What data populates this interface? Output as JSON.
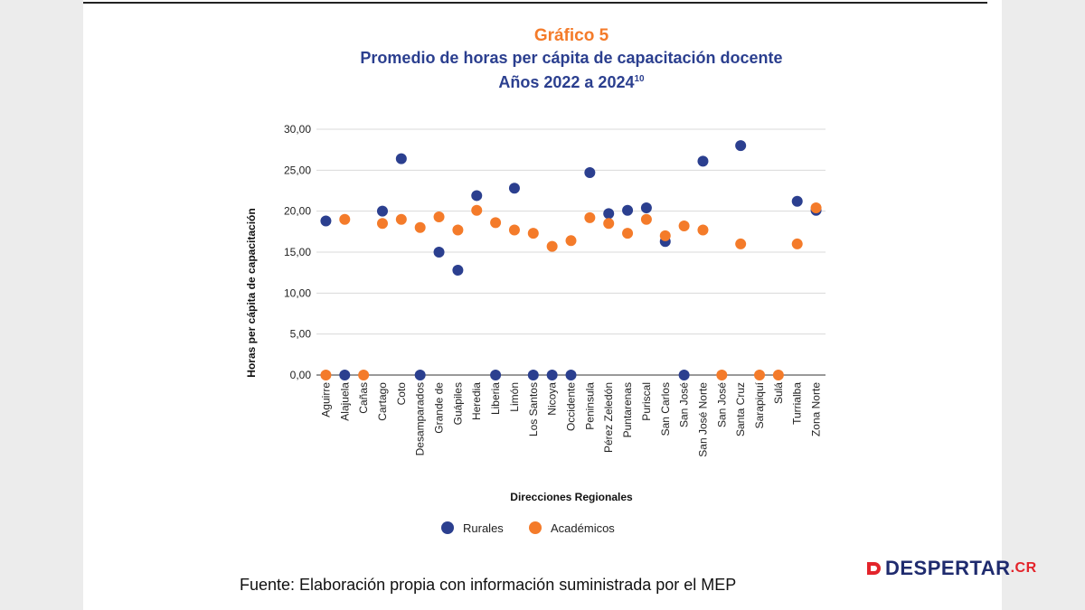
{
  "header": {
    "title": "Gráfico 5",
    "subtitle_line1": "Promedio de horas per cápita de capacitación docente",
    "subtitle_line2": "Años 2022 a 2024",
    "footnote_mark": "10"
  },
  "chart_data": {
    "type": "scatter",
    "title": "Gráfico 5",
    "xlabel": "Direcciones Regionales",
    "ylabel": "Horas per cápita de capacitación",
    "ylim": [
      0,
      30
    ],
    "yticks": [
      "0,00",
      "5,00",
      "10,00",
      "15,00",
      "20,00",
      "25,00",
      "30,00"
    ],
    "grid": true,
    "legend_position": "bottom",
    "categories": [
      "Aguirre",
      "Alajuela",
      "Cañas",
      "Cartago",
      "Coto",
      "Desamparados",
      "Grande de",
      "Guápiles",
      "Heredia",
      "Liberia",
      "Limón",
      "Los Santos",
      "Nicoya",
      "Occidente",
      "Peninsula",
      "Pérez Zeledón",
      "Puntarenas",
      "Puriscal",
      "San Carlos",
      "San José",
      "San José Norte",
      "San José",
      "Santa Cruz",
      "Sarapiquí",
      "Sulá",
      "Turrialba",
      "Zona Norte"
    ],
    "series": [
      {
        "name": "Rurales",
        "color": "#2b3f8f",
        "values": [
          18.8,
          0,
          null,
          20.0,
          26.4,
          0,
          15.0,
          12.8,
          21.9,
          0,
          22.8,
          0,
          0,
          0,
          24.7,
          19.7,
          20.1,
          20.4,
          16.3,
          0,
          26.1,
          null,
          28.0,
          null,
          null,
          21.2,
          20.1
        ]
      },
      {
        "name": "Académicos",
        "color": "#f47b2a",
        "values": [
          0,
          19.0,
          0,
          18.5,
          19.0,
          18.0,
          19.3,
          17.7,
          20.1,
          18.6,
          17.7,
          17.3,
          15.7,
          16.4,
          19.2,
          18.5,
          17.3,
          19.0,
          17.0,
          18.2,
          17.7,
          0,
          16.0,
          0,
          0,
          16.0,
          20.4
        ]
      }
    ]
  },
  "footer": {
    "source": "Fuente: Elaboración propia con información suministrada por el MEP",
    "logo_main": "DESPERTAR",
    "logo_suffix": ".CR"
  }
}
